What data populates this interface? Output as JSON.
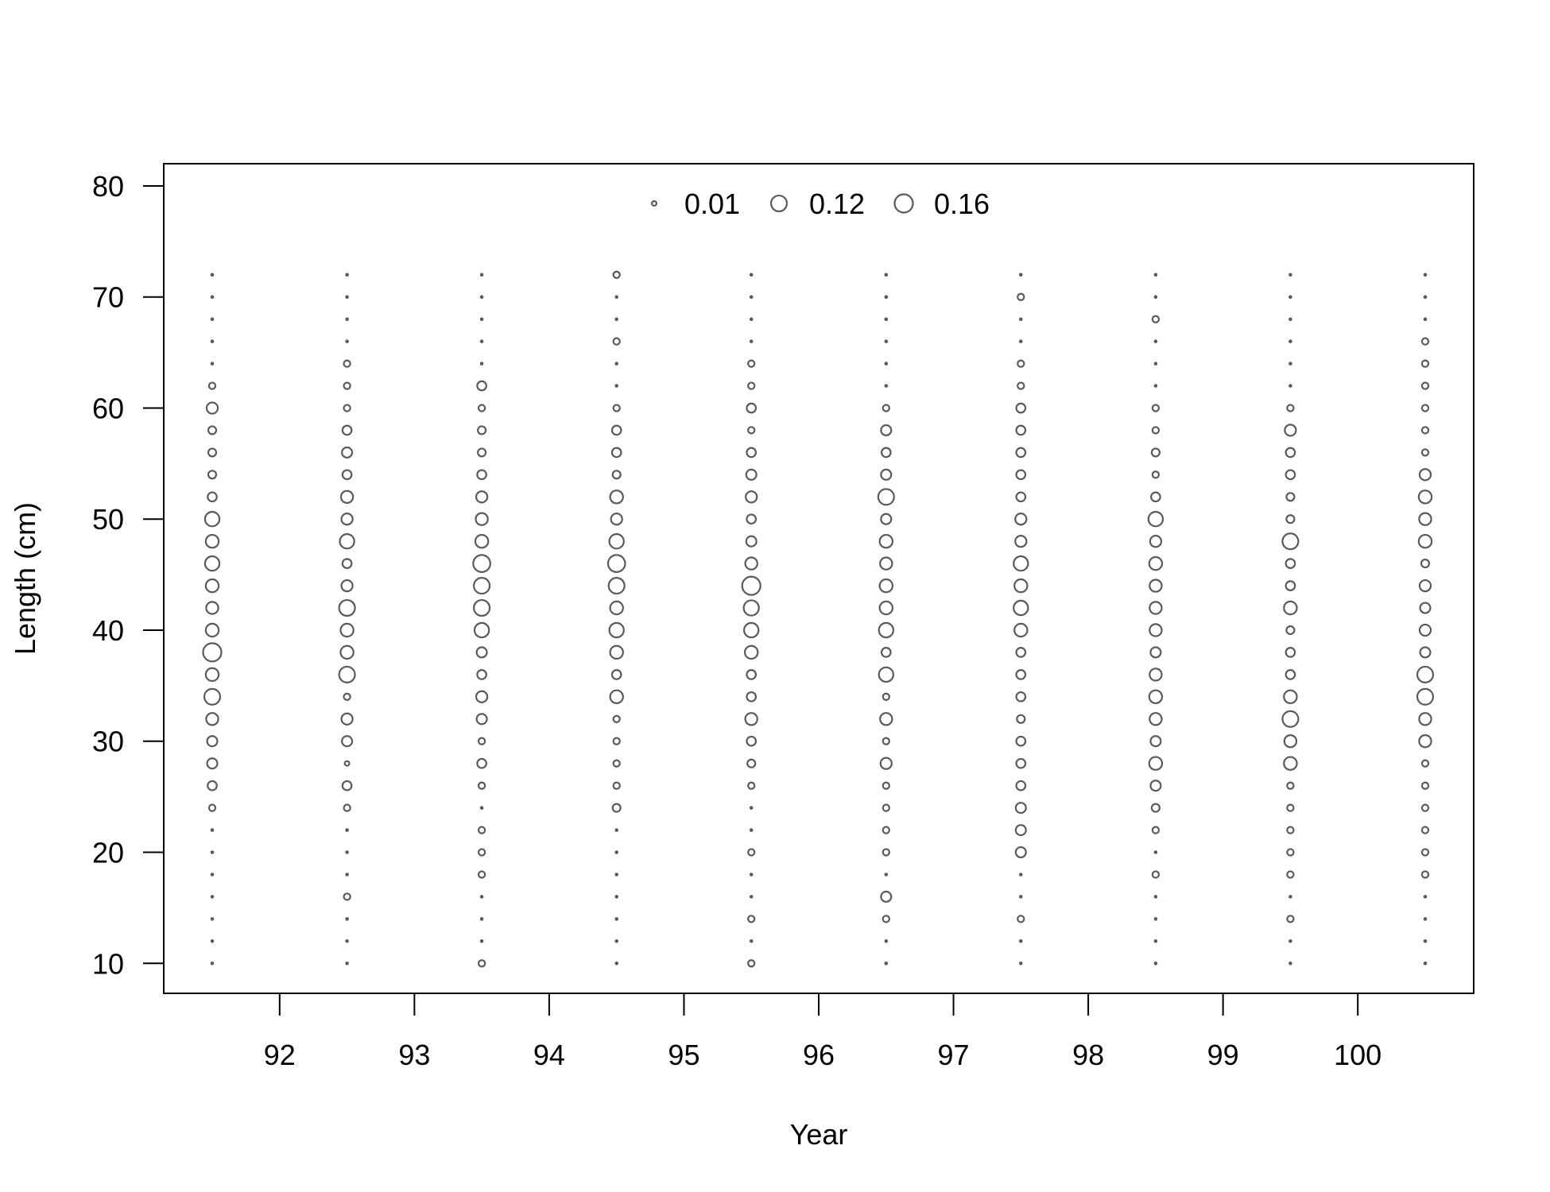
{
  "chart_data": {
    "type": "scatter",
    "subtype": "bubble",
    "xlabel": "Year",
    "ylabel": "Length (cm)",
    "xlim": [
      91.14,
      100.86
    ],
    "ylim": [
      7.3,
      82.0
    ],
    "x_ticks": [
      92,
      93,
      94,
      95,
      96,
      97,
      98,
      99,
      100
    ],
    "x_tick_labels": [
      "92",
      "93",
      "94",
      "95",
      "96",
      "97",
      "98",
      "99",
      "100"
    ],
    "y_ticks": [
      10,
      20,
      30,
      40,
      50,
      60,
      70,
      80
    ],
    "y_tick_labels": [
      "10",
      "20",
      "30",
      "40",
      "50",
      "60",
      "70",
      "80"
    ],
    "grid": false,
    "legend_position": "top-center",
    "legend": [
      {
        "value": 0.01,
        "label": "0.01"
      },
      {
        "value": 0.12,
        "label": "0.12"
      },
      {
        "value": 0.16,
        "label": "0.16"
      }
    ],
    "marker_color": "#5a5a5a",
    "max_value": 0.16,
    "years": [
      91.5,
      92.5,
      93.5,
      94.5,
      95.5,
      96.5,
      97.5,
      98.5,
      99.5,
      100.5
    ],
    "lengths": [
      10,
      12,
      14,
      16,
      18,
      20,
      22,
      24,
      26,
      28,
      30,
      32,
      34,
      36,
      38,
      40,
      42,
      44,
      46,
      48,
      50,
      52,
      54,
      56,
      58,
      60,
      62,
      64,
      66,
      68,
      70,
      72
    ],
    "values": [
      [
        0.001,
        0.001,
        0.001,
        0.001,
        0.001,
        0.001,
        0.001,
        0.02,
        0.04,
        0.05,
        0.05,
        0.07,
        0.12,
        0.08,
        0.16,
        0.08,
        0.07,
        0.08,
        0.1,
        0.08,
        0.1,
        0.04,
        0.03,
        0.03,
        0.03,
        0.06,
        0.02,
        0.001,
        0.001,
        0.001,
        0.001,
        0.001
      ],
      [
        0.001,
        0.001,
        0.001,
        0.02,
        0.001,
        0.001,
        0.001,
        0.02,
        0.04,
        0.01,
        0.05,
        0.06,
        0.02,
        0.12,
        0.08,
        0.08,
        0.12,
        0.06,
        0.04,
        0.1,
        0.06,
        0.07,
        0.04,
        0.05,
        0.04,
        0.02,
        0.02,
        0.02,
        0.001,
        0.001,
        0.001,
        0.001
      ],
      [
        0.02,
        0.001,
        0.001,
        0.001,
        0.02,
        0.02,
        0.02,
        0.001,
        0.02,
        0.04,
        0.02,
        0.05,
        0.06,
        0.04,
        0.05,
        0.1,
        0.12,
        0.12,
        0.14,
        0.08,
        0.07,
        0.06,
        0.04,
        0.03,
        0.03,
        0.02,
        0.04,
        0.001,
        0.001,
        0.001,
        0.001,
        0.001
      ],
      [
        0.001,
        0.001,
        0.001,
        0.001,
        0.001,
        0.001,
        0.001,
        0.03,
        0.02,
        0.02,
        0.02,
        0.02,
        0.08,
        0.04,
        0.08,
        0.1,
        0.08,
        0.12,
        0.14,
        0.1,
        0.06,
        0.08,
        0.03,
        0.04,
        0.04,
        0.02,
        0.001,
        0.001,
        0.02,
        0.001,
        0.001,
        0.02
      ],
      [
        0.02,
        0.001,
        0.02,
        0.001,
        0.001,
        0.02,
        0.001,
        0.001,
        0.02,
        0.03,
        0.04,
        0.07,
        0.04,
        0.04,
        0.08,
        0.1,
        0.11,
        0.16,
        0.07,
        0.05,
        0.04,
        0.06,
        0.05,
        0.04,
        0.02,
        0.04,
        0.02,
        0.02,
        0.001,
        0.001,
        0.001,
        0.001
      ],
      [
        0.001,
        0.001,
        0.02,
        0.05,
        0.001,
        0.02,
        0.02,
        0.02,
        0.02,
        0.06,
        0.02,
        0.07,
        0.02,
        0.1,
        0.04,
        0.1,
        0.08,
        0.08,
        0.07,
        0.08,
        0.05,
        0.12,
        0.05,
        0.04,
        0.05,
        0.02,
        0.001,
        0.001,
        0.001,
        0.001,
        0.001,
        0.001
      ],
      [
        0.001,
        0.001,
        0.02,
        0.001,
        0.001,
        0.05,
        0.05,
        0.05,
        0.04,
        0.04,
        0.04,
        0.03,
        0.04,
        0.04,
        0.04,
        0.08,
        0.1,
        0.08,
        0.1,
        0.06,
        0.06,
        0.04,
        0.04,
        0.04,
        0.04,
        0.04,
        0.02,
        0.02,
        0.001,
        0.001,
        0.02,
        0.001
      ],
      [
        0.001,
        0.001,
        0.001,
        0.001,
        0.02,
        0.001,
        0.02,
        0.03,
        0.05,
        0.08,
        0.05,
        0.07,
        0.08,
        0.07,
        0.05,
        0.07,
        0.07,
        0.07,
        0.08,
        0.06,
        0.1,
        0.04,
        0.02,
        0.03,
        0.02,
        0.02,
        0.001,
        0.001,
        0.001,
        0.02,
        0.001,
        0.001
      ],
      [
        0.001,
        0.001,
        0.02,
        0.001,
        0.02,
        0.02,
        0.02,
        0.02,
        0.02,
        0.08,
        0.07,
        0.12,
        0.08,
        0.04,
        0.04,
        0.03,
        0.08,
        0.04,
        0.04,
        0.12,
        0.03,
        0.03,
        0.04,
        0.04,
        0.06,
        0.02,
        0.001,
        0.001,
        0.001,
        0.001,
        0.001,
        0.001
      ],
      [
        0.001,
        0.001,
        0.001,
        0.001,
        0.02,
        0.02,
        0.02,
        0.02,
        0.02,
        0.02,
        0.07,
        0.07,
        0.12,
        0.12,
        0.05,
        0.06,
        0.05,
        0.06,
        0.03,
        0.08,
        0.07,
        0.08,
        0.06,
        0.02,
        0.02,
        0.02,
        0.02,
        0.02,
        0.02,
        0.001,
        0.001,
        0.001
      ]
    ]
  }
}
